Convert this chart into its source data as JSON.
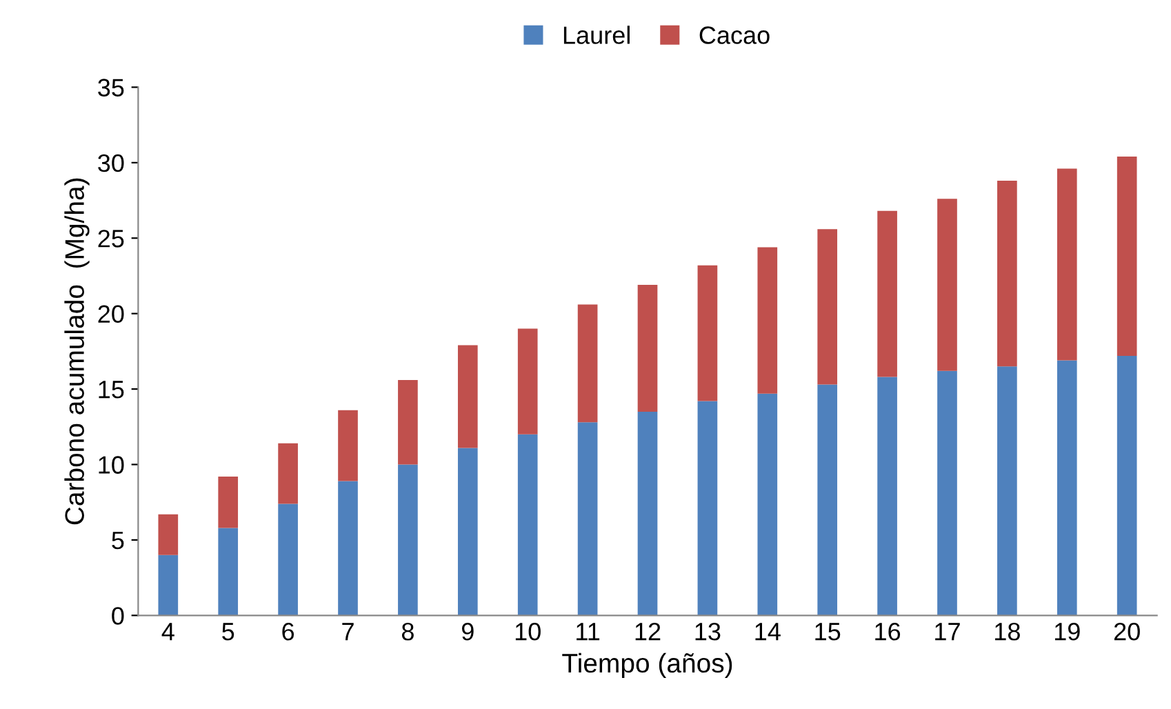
{
  "chart_data": {
    "type": "bar",
    "stacked": true,
    "xlabel": "Tiempo (años)",
    "ylabel": "Carbono acumulado  (Mg/ha)",
    "categories": [
      "4",
      "5",
      "6",
      "7",
      "8",
      "9",
      "10",
      "11",
      "12",
      "13",
      "14",
      "15",
      "16",
      "17",
      "18",
      "19",
      "20"
    ],
    "series": [
      {
        "name": "Laurel",
        "color": "#4f81bd",
        "values": [
          4.0,
          5.8,
          7.4,
          8.9,
          10.0,
          11.1,
          12.0,
          12.8,
          13.5,
          14.2,
          14.7,
          15.3,
          15.8,
          16.2,
          16.5,
          16.9,
          17.2
        ]
      },
      {
        "name": "Cacao",
        "color": "#c0504d",
        "values": [
          2.7,
          3.4,
          4.0,
          4.7,
          5.6,
          6.8,
          7.0,
          7.8,
          8.4,
          9.0,
          9.7,
          10.3,
          11.0,
          11.4,
          12.3,
          12.7,
          13.2
        ]
      }
    ],
    "ylim": [
      0,
      35
    ],
    "yticks": [
      0,
      5,
      10,
      15,
      20,
      25,
      30,
      35
    ],
    "grid": false,
    "legend": "top"
  }
}
